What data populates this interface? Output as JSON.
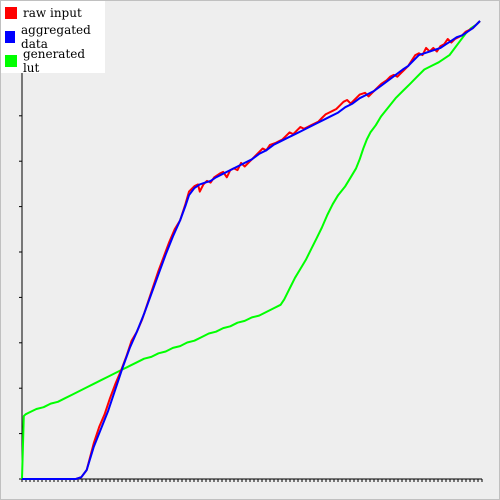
{
  "chart_data": {
    "type": "line",
    "title": "",
    "xlabel": "",
    "ylabel": "",
    "xlim": [
      0,
      255
    ],
    "ylim": [
      0,
      255
    ],
    "grid": false,
    "legend_position": "top-left",
    "series": [
      {
        "name": "raw input",
        "color": "#ff0000",
        "points": [
          [
            0,
            0
          ],
          [
            30,
            0
          ],
          [
            33,
            1
          ],
          [
            36,
            5
          ],
          [
            40,
            20
          ],
          [
            43,
            29
          ],
          [
            46,
            36
          ],
          [
            49,
            45
          ],
          [
            52,
            53
          ],
          [
            55,
            60
          ],
          [
            58,
            68
          ],
          [
            61,
            77
          ],
          [
            64,
            82
          ],
          [
            67,
            89
          ],
          [
            70,
            98
          ],
          [
            73,
            107
          ],
          [
            76,
            116
          ],
          [
            79,
            124
          ],
          [
            82,
            132
          ],
          [
            85,
            139
          ],
          [
            88,
            144
          ],
          [
            91,
            153
          ],
          [
            93,
            160
          ],
          [
            96,
            163
          ],
          [
            98,
            164
          ],
          [
            99,
            160
          ],
          [
            101,
            164
          ],
          [
            103,
            166
          ],
          [
            105,
            165
          ],
          [
            107,
            168
          ],
          [
            110,
            170
          ],
          [
            112,
            171
          ],
          [
            114,
            168
          ],
          [
            116,
            172
          ],
          [
            118,
            173
          ],
          [
            120,
            172
          ],
          [
            122,
            176
          ],
          [
            124,
            174
          ],
          [
            126,
            176
          ],
          [
            128,
            178
          ],
          [
            130,
            180
          ],
          [
            132,
            182
          ],
          [
            134,
            184
          ],
          [
            136,
            183
          ],
          [
            138,
            186
          ],
          [
            141,
            187
          ],
          [
            143,
            188
          ],
          [
            145,
            189
          ],
          [
            147,
            191
          ],
          [
            149,
            193
          ],
          [
            151,
            192
          ],
          [
            153,
            194
          ],
          [
            155,
            196
          ],
          [
            157,
            195
          ],
          [
            159,
            196
          ],
          [
            161,
            197
          ],
          [
            163,
            198
          ],
          [
            165,
            199
          ],
          [
            167,
            201
          ],
          [
            169,
            203
          ],
          [
            171,
            204
          ],
          [
            173,
            205
          ],
          [
            175,
            206
          ],
          [
            177,
            208
          ],
          [
            179,
            210
          ],
          [
            181,
            211
          ],
          [
            183,
            209
          ],
          [
            185,
            211
          ],
          [
            188,
            214
          ],
          [
            191,
            215
          ],
          [
            193,
            213
          ],
          [
            196,
            216
          ],
          [
            198,
            218
          ],
          [
            200,
            220
          ],
          [
            203,
            222
          ],
          [
            205,
            224
          ],
          [
            207,
            225
          ],
          [
            209,
            224
          ],
          [
            211,
            226
          ],
          [
            213,
            228
          ],
          [
            215,
            230
          ],
          [
            217,
            233
          ],
          [
            219,
            236
          ],
          [
            221,
            237
          ],
          [
            223,
            236
          ],
          [
            225,
            240
          ],
          [
            227,
            238
          ],
          [
            229,
            240
          ],
          [
            231,
            238
          ],
          [
            233,
            241
          ],
          [
            235,
            242
          ],
          [
            237,
            245
          ],
          [
            239,
            243
          ],
          [
            241,
            245
          ],
          [
            243,
            246
          ],
          [
            245,
            247
          ],
          [
            247,
            249
          ],
          [
            249,
            250
          ],
          [
            251,
            251
          ],
          [
            253,
            253
          ],
          [
            255,
            255
          ]
        ]
      },
      {
        "name": "aggregated data",
        "color": "#0000ff",
        "points": [
          [
            0,
            0
          ],
          [
            30,
            0
          ],
          [
            33,
            1
          ],
          [
            36,
            5
          ],
          [
            40,
            18
          ],
          [
            44,
            28
          ],
          [
            48,
            38
          ],
          [
            52,
            50
          ],
          [
            56,
            62
          ],
          [
            60,
            73
          ],
          [
            64,
            82
          ],
          [
            68,
            92
          ],
          [
            72,
            103
          ],
          [
            76,
            114
          ],
          [
            80,
            125
          ],
          [
            84,
            135
          ],
          [
            88,
            144
          ],
          [
            91,
            152
          ],
          [
            93,
            158
          ],
          [
            96,
            162
          ],
          [
            99,
            164
          ],
          [
            102,
            165
          ],
          [
            105,
            166
          ],
          [
            108,
            168
          ],
          [
            112,
            170
          ],
          [
            116,
            172
          ],
          [
            120,
            174
          ],
          [
            124,
            176
          ],
          [
            128,
            178
          ],
          [
            132,
            181
          ],
          [
            136,
            183
          ],
          [
            140,
            186
          ],
          [
            144,
            188
          ],
          [
            148,
            190
          ],
          [
            152,
            192
          ],
          [
            156,
            194
          ],
          [
            160,
            196
          ],
          [
            164,
            198
          ],
          [
            168,
            200
          ],
          [
            172,
            202
          ],
          [
            176,
            204
          ],
          [
            180,
            207
          ],
          [
            184,
            209
          ],
          [
            188,
            212
          ],
          [
            192,
            214
          ],
          [
            196,
            216
          ],
          [
            200,
            219
          ],
          [
            204,
            222
          ],
          [
            208,
            225
          ],
          [
            212,
            228
          ],
          [
            215,
            230
          ],
          [
            218,
            233
          ],
          [
            221,
            236
          ],
          [
            224,
            237
          ],
          [
            227,
            238
          ],
          [
            230,
            239
          ],
          [
            233,
            240
          ],
          [
            236,
            242
          ],
          [
            239,
            244
          ],
          [
            242,
            246
          ],
          [
            245,
            247
          ],
          [
            248,
            249
          ],
          [
            251,
            251
          ],
          [
            255,
            255
          ]
        ]
      },
      {
        "name": "generated lut",
        "color": "#00ff00",
        "points": [
          [
            0,
            0
          ],
          [
            1,
            35
          ],
          [
            2,
            36
          ],
          [
            4,
            37
          ],
          [
            8,
            39
          ],
          [
            12,
            40
          ],
          [
            16,
            42
          ],
          [
            20,
            43
          ],
          [
            24,
            45
          ],
          [
            28,
            47
          ],
          [
            32,
            49
          ],
          [
            36,
            51
          ],
          [
            40,
            53
          ],
          [
            44,
            55
          ],
          [
            48,
            57
          ],
          [
            52,
            59
          ],
          [
            56,
            61
          ],
          [
            60,
            63
          ],
          [
            64,
            65
          ],
          [
            68,
            67
          ],
          [
            72,
            68
          ],
          [
            76,
            70
          ],
          [
            80,
            71
          ],
          [
            84,
            73
          ],
          [
            88,
            74
          ],
          [
            92,
            76
          ],
          [
            96,
            77
          ],
          [
            100,
            79
          ],
          [
            104,
            81
          ],
          [
            108,
            82
          ],
          [
            112,
            84
          ],
          [
            116,
            85
          ],
          [
            120,
            87
          ],
          [
            124,
            88
          ],
          [
            128,
            90
          ],
          [
            132,
            91
          ],
          [
            136,
            93
          ],
          [
            140,
            95
          ],
          [
            144,
            97
          ],
          [
            146,
            100
          ],
          [
            148,
            104
          ],
          [
            150,
            108
          ],
          [
            152,
            112
          ],
          [
            155,
            117
          ],
          [
            158,
            122
          ],
          [
            161,
            128
          ],
          [
            164,
            134
          ],
          [
            167,
            140
          ],
          [
            170,
            147
          ],
          [
            173,
            153
          ],
          [
            176,
            158
          ],
          [
            180,
            163
          ],
          [
            183,
            168
          ],
          [
            186,
            173
          ],
          [
            188,
            178
          ],
          [
            190,
            184
          ],
          [
            192,
            189
          ],
          [
            194,
            193
          ],
          [
            197,
            197
          ],
          [
            200,
            202
          ],
          [
            204,
            207
          ],
          [
            208,
            212
          ],
          [
            212,
            216
          ],
          [
            216,
            220
          ],
          [
            220,
            224
          ],
          [
            224,
            228
          ],
          [
            228,
            230
          ],
          [
            232,
            232
          ],
          [
            235,
            234
          ],
          [
            238,
            236
          ],
          [
            241,
            240
          ],
          [
            244,
            244
          ],
          [
            247,
            248
          ],
          [
            250,
            251
          ],
          [
            253,
            253
          ],
          [
            255,
            255
          ]
        ]
      }
    ]
  }
}
